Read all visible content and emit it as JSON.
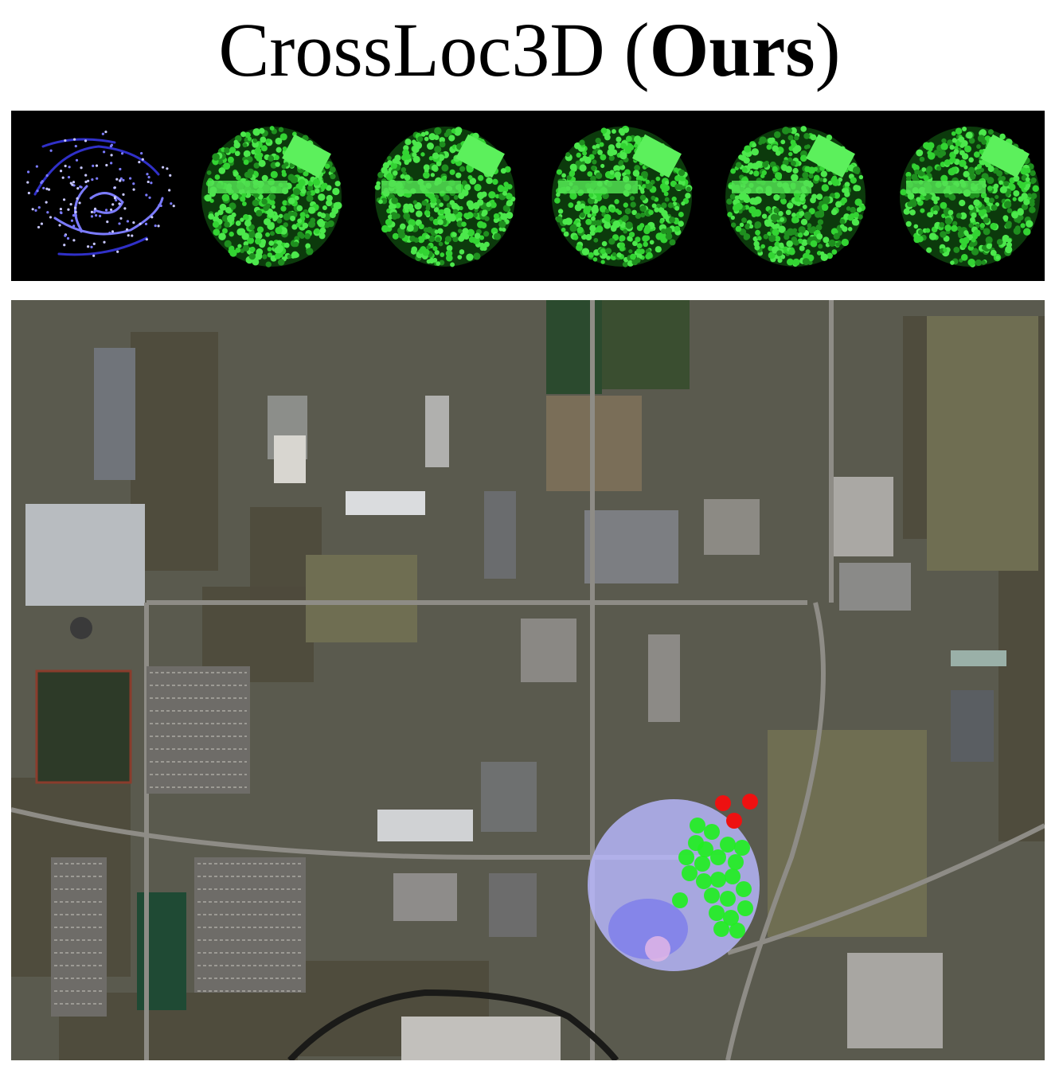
{
  "figure": {
    "title_main": "CrossLoc3D (",
    "title_bold": "Ours",
    "title_end": ")"
  },
  "query": {
    "cloud_color": "#7b7bff",
    "cloud_dark_color": "#3030c8",
    "matches": 5,
    "match_color": "#33d433"
  },
  "map": {
    "prediction_color": "#22ee22",
    "error_color": "#ee1111",
    "query_region_color": "#b8b8ff"
  }
}
